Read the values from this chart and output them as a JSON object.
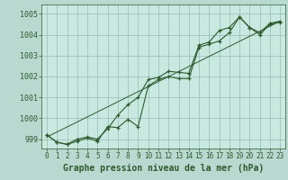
{
  "xlabel": "Graphe pression niveau de la mer (hPa)",
  "background_color": "#b8d8d0",
  "plot_bg_color": "#c8e8e0",
  "grid_color": "#99bbb5",
  "line_color": "#2d5a2d",
  "xlim": [
    -0.5,
    23.5
  ],
  "ylim": [
    998.55,
    1005.45
  ],
  "yticks": [
    999,
    1000,
    1001,
    1002,
    1003,
    1004,
    1005
  ],
  "xticks": [
    0,
    1,
    2,
    3,
    4,
    5,
    6,
    7,
    8,
    9,
    10,
    11,
    12,
    13,
    14,
    15,
    16,
    17,
    18,
    19,
    20,
    21,
    22,
    23
  ],
  "series1_x": [
    0,
    1,
    2,
    3,
    4,
    5,
    6,
    7,
    8,
    9,
    10,
    11,
    12,
    13,
    14,
    15,
    16,
    17,
    18,
    19,
    20,
    21,
    22,
    23
  ],
  "series1_y": [
    999.2,
    998.85,
    998.75,
    999.0,
    999.1,
    999.0,
    999.5,
    1000.15,
    1000.65,
    1001.0,
    1001.85,
    1001.95,
    1002.25,
    1002.2,
    1002.15,
    1003.5,
    1003.65,
    1004.2,
    1004.35,
    1004.85,
    1004.35,
    1004.1,
    1004.55,
    1004.65
  ],
  "series2_x": [
    0,
    1,
    2,
    3,
    4,
    5,
    6,
    7,
    8,
    9,
    10,
    11,
    12,
    13,
    14,
    15,
    16,
    17,
    18,
    19,
    20,
    21,
    22,
    23
  ],
  "series2_y": [
    999.2,
    998.85,
    998.75,
    998.9,
    999.05,
    998.9,
    999.6,
    999.55,
    999.95,
    999.6,
    1001.55,
    1001.85,
    1002.0,
    1001.9,
    1001.9,
    1003.4,
    1003.55,
    1003.7,
    1004.1,
    1004.85,
    1004.35,
    1004.0,
    1004.5,
    1004.6
  ],
  "trend_x": [
    0,
    23
  ],
  "trend_y": [
    999.1,
    1004.65
  ],
  "xlabel_fontsize": 7,
  "tick_fontsize": 6
}
